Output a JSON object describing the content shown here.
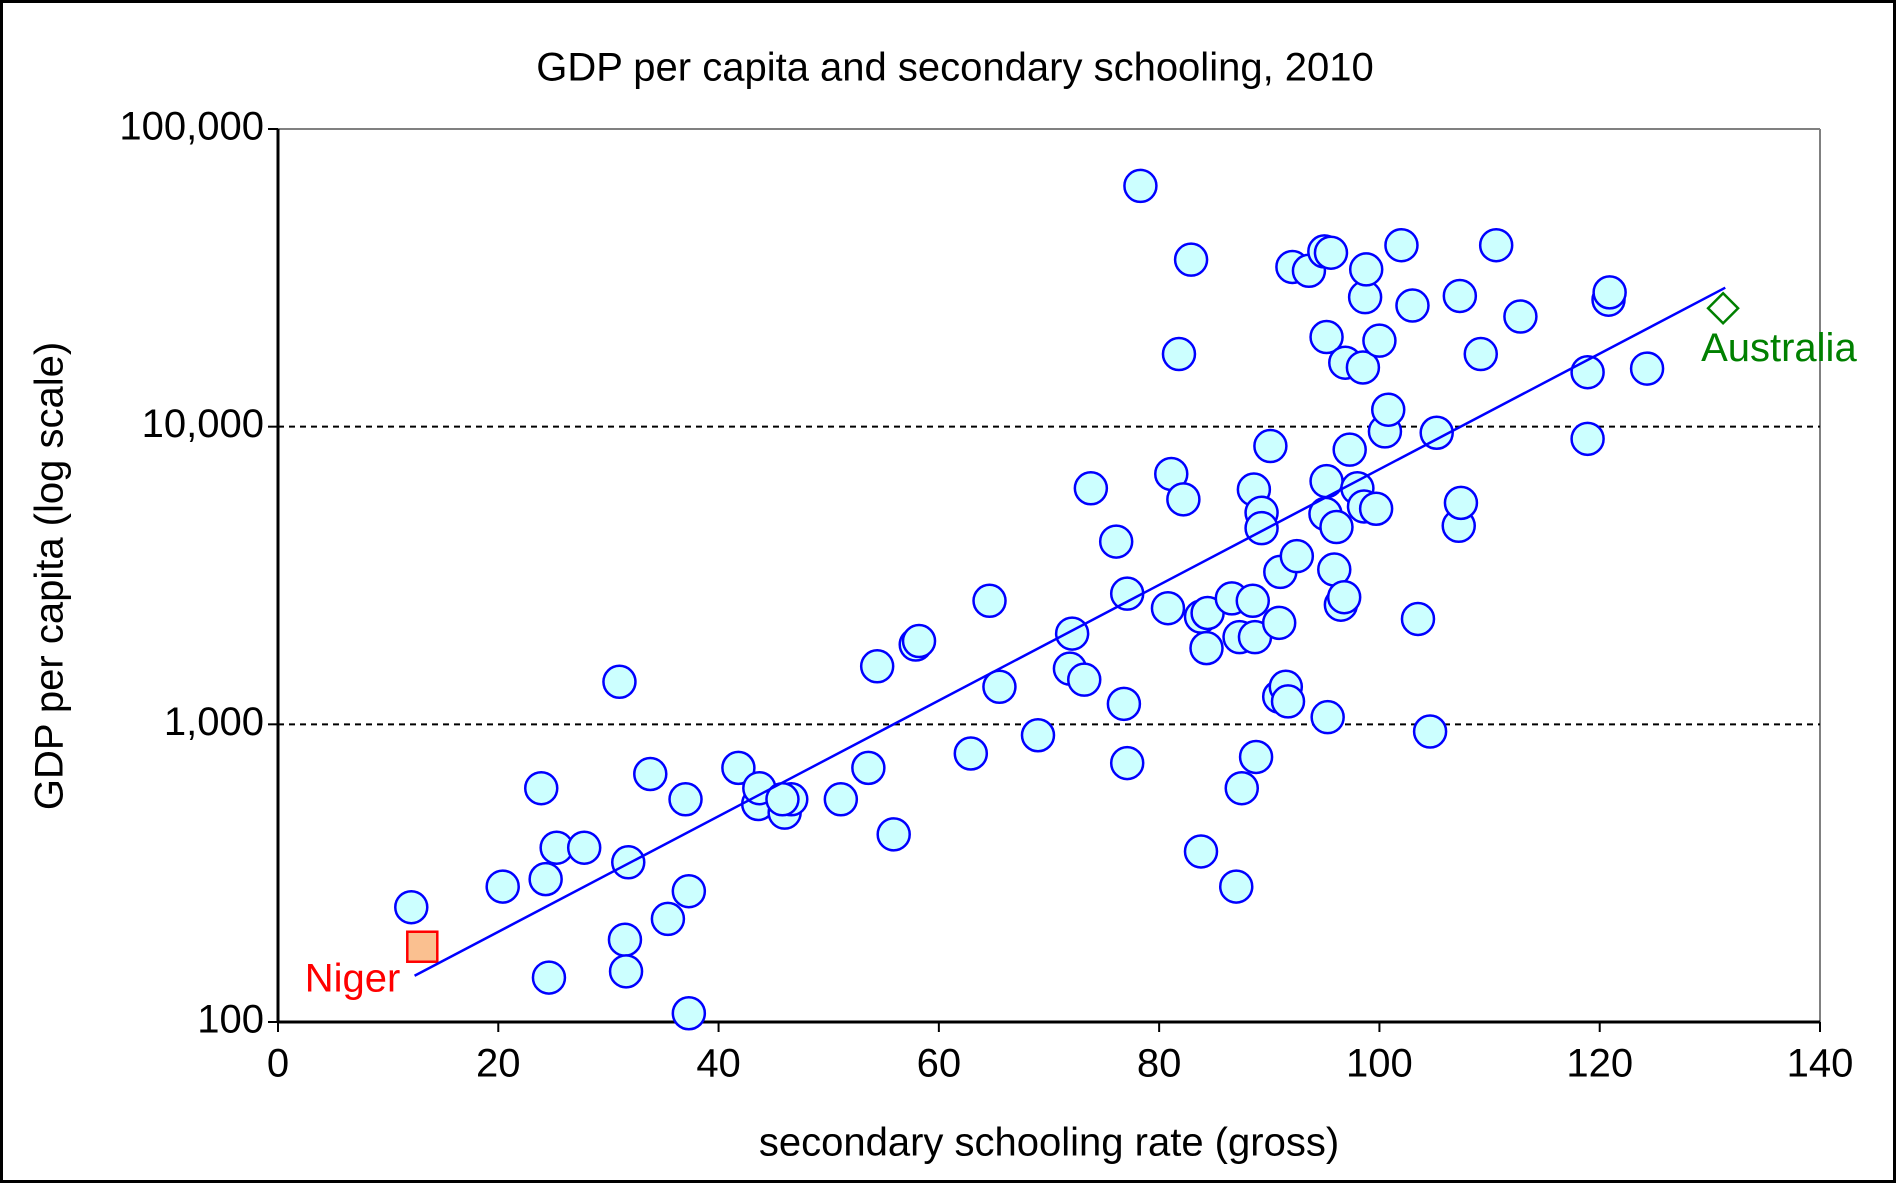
{
  "chart_data": {
    "type": "scatter",
    "title": "GDP per capita and secondary schooling, 2010",
    "x_label": "secondary schooling rate (gross)",
    "y_label": "GDP per capita (log scale)",
    "xlim": [
      0,
      140
    ],
    "xticks": [
      0,
      20,
      40,
      60,
      80,
      100,
      120,
      140
    ],
    "ylim": [
      100,
      100000
    ],
    "y_log_scale": true,
    "yticks": [
      100,
      {
        "value": 1000,
        "label": "1,000"
      },
      {
        "value": 10000,
        "label": "10,000"
      },
      {
        "value": 100000,
        "label": "100,000"
      }
    ],
    "grid": true,
    "series": [
      {
        "marker": "circle",
        "color": "#0000ff",
        "fill": "#ccffff",
        "x": [
          12.1,
          20.4,
          23.9,
          24.3,
          24.6,
          25.3,
          27.8,
          31.0,
          31.5,
          31.6,
          31.8,
          33.8,
          35.4,
          37.0,
          37.3,
          37.3,
          41.8,
          43.6,
          43.7,
          46.0,
          46.6,
          45.8,
          51.1,
          53.6,
          54.4,
          55.9,
          57.9,
          58.2,
          62.9,
          64.6,
          65.5,
          69.0,
          72.1,
          71.9,
          73.2,
          73.8,
          76.1,
          76.8,
          77.1,
          77.1,
          78.3,
          80.8,
          81.1,
          81.8,
          82.2,
          82.9,
          83.8,
          83.8,
          84.3,
          84.4,
          86.6,
          87.0,
          87.3,
          87.5,
          88.5,
          88.6,
          88.7,
          88.8,
          89.3,
          89.3,
          90.1,
          90.9,
          91.0,
          90.9,
          91.5,
          91.7,
          92.1,
          92.5,
          93.6,
          95.0,
          95.3,
          95.2,
          95.2,
          95.1,
          95.6,
          95.9,
          96.1,
          96.5,
          96.8,
          96.9,
          97.3,
          98.0,
          98.5,
          98.6,
          98.7,
          98.8,
          99.7,
          100.0,
          100.5,
          100.8,
          102.0,
          103.0,
          103.5,
          104.6,
          105.2,
          107.2,
          107.3,
          107.4,
          109.2,
          110.6,
          112.8,
          118.9,
          118.9,
          120.8,
          120.9,
          124.3
        ],
        "values": [
          243,
          285,
          610,
          302,
          141,
          385,
          385,
          1390,
          189,
          148,
          344,
          681,
          222,
          560,
          275,
          107,
          714,
          540,
          610,
          505,
          560,
          560,
          560,
          714,
          1567,
          427,
          1854,
          1905,
          798,
          2600,
          1337,
          919,
          2018,
          1538,
          1413,
          6209,
          4111,
          1172,
          741,
          2748,
          64400,
          2455,
          6937,
          17540,
          5700,
          36390,
          2300,
          374,
          1803,
          2366,
          2649,
          285,
          1963,
          610,
          2600,
          6150,
          1963,
          777,
          5140,
          4560,
          8610,
          1239,
          3251,
          2193,
          1337,
          1194,
          34400,
          3673,
          33400,
          38800,
          1057,
          20000,
          6560,
          5093,
          38400,
          3311,
          4600,
          2523,
          2673,
          16400,
          8370,
          6209,
          15810,
          5395,
          27230,
          33750,
          5300,
          19450,
          9640,
          11400,
          40700,
          25520,
          2259,
          946,
          9540,
          4645,
          27480,
          5546,
          17540,
          40700,
          23440,
          15240,
          9100,
          26700,
          28260,
          15670
        ]
      },
      {
        "name": "Niger",
        "marker": "square",
        "color": "#ff0000",
        "fill": "#fac090",
        "x": [
          13.1
        ],
        "values": [
          179
        ]
      },
      {
        "name": "Australia",
        "marker": "diamond",
        "color": "#008000",
        "fill": "#ffffff",
        "x": [
          131.2
        ],
        "values": [
          25000
        ]
      },
      {
        "marker": "line",
        "color": "#0000ff",
        "x": [
          12.4,
          131.4
        ],
        "values": [
          143,
          29300
        ]
      }
    ]
  }
}
